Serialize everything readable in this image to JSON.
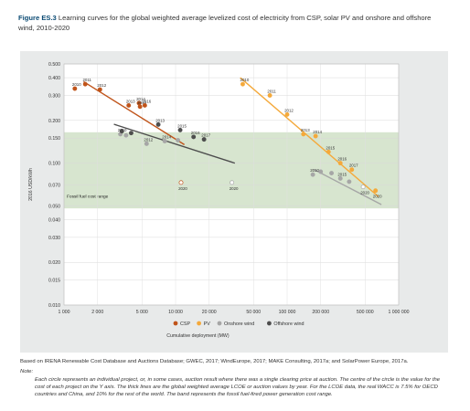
{
  "caption": {
    "figure_label": "Figure ES.3",
    "title": "Learning curves for the global weighted average levelized cost of electricity from CSP, solar PV and onshore and offshore wind, 2010-2020"
  },
  "notes": {
    "source": "Based on IRENA Renewable Cost Database and Auctions Database; GWEC, 2017; WindEurope, 2017; MAKE Consulting, 2017a; and SolarPower Europe, 2017a.",
    "note_label": "Note:",
    "note_text": "Each circle represents an individual project, or, in some cases, auction result where there was a single clearing price at auction. The centre of the circle is the value for the cost of each project on the Y axis. The thick lines are the global weighted average LCOE or auction values by year. For the LCOE data, the real WACC is 7.5% for OECD countries and China, and 10% for the rest of the world. The band represents the fossil fuel-fired power generation cost range."
  },
  "chart_data": {
    "type": "scatter",
    "x_scale": "log",
    "y_scale": "log",
    "xlabel": "Cumulative deployment (MW)",
    "ylabel": "2016 USD/kWh",
    "xlim": [
      1000,
      1000000
    ],
    "ylim": [
      0.01,
      0.5
    ],
    "x_ticks": [
      1000,
      2000,
      5000,
      10000,
      20000,
      50000,
      100000,
      200000,
      500000,
      1000000
    ],
    "x_tick_labels": [
      "1 000",
      "2 000",
      "5 000",
      "10 000",
      "20 000",
      "50 000",
      "100 000",
      "200 000",
      "500 000",
      "1 000 000"
    ],
    "y_ticks": [
      0.01,
      0.015,
      0.02,
      0.03,
      0.04,
      0.05,
      0.07,
      0.1,
      0.15,
      0.2,
      0.3,
      0.4,
      0.5
    ],
    "y_tick_labels": [
      "0.010",
      "0.015",
      "0.020",
      "0.030",
      "0.040",
      "0.050",
      "0.070",
      "0.100",
      "0.150",
      "0.200",
      "0.300",
      "0.400",
      "0.500"
    ],
    "fossil_band": {
      "label": "Fossil fuel cost range",
      "y_range": [
        0.048,
        0.165
      ]
    },
    "series": [
      {
        "name": "CSP",
        "color": "#c0541a",
        "marker": "filled",
        "points": [
          {
            "x": 1250,
            "y": 0.335,
            "label": "2010"
          },
          {
            "x": 1550,
            "y": 0.36,
            "label": "2011"
          },
          {
            "x": 2100,
            "y": 0.33,
            "label": "2012"
          },
          {
            "x": 3800,
            "y": 0.255,
            "label": "2013"
          },
          {
            "x": 4700,
            "y": 0.265,
            "label": "2014"
          },
          {
            "x": 4800,
            "y": 0.25,
            "label": "2015"
          },
          {
            "x": 5300,
            "y": 0.255,
            "label": "2016"
          },
          {
            "x": 11200,
            "y": 0.073,
            "label": "2020"
          }
        ],
        "trend": [
          {
            "x": 1500,
            "y": 0.375
          },
          {
            "x": 12000,
            "y": 0.135
          }
        ]
      },
      {
        "name": "PV",
        "color": "#f4a93b",
        "marker": "filled",
        "points": [
          {
            "x": 40000,
            "y": 0.36,
            "label": "2010"
          },
          {
            "x": 70000,
            "y": 0.3,
            "label": "2011"
          },
          {
            "x": 100000,
            "y": 0.22,
            "label": "2012"
          },
          {
            "x": 140000,
            "y": 0.16,
            "label": "2013"
          },
          {
            "x": 180000,
            "y": 0.155,
            "label": "2014"
          },
          {
            "x": 235000,
            "y": 0.12,
            "label": "2015"
          },
          {
            "x": 300000,
            "y": 0.1,
            "label": "2016"
          },
          {
            "x": 380000,
            "y": 0.09,
            "label": "2017"
          },
          {
            "x": 620000,
            "y": 0.064,
            "label": "2020"
          }
        ],
        "trend": [
          {
            "x": 38000,
            "y": 0.4
          },
          {
            "x": 660000,
            "y": 0.058
          }
        ]
      },
      {
        "name": "Onshore wind",
        "color": "#a6a6a6",
        "marker": "filled",
        "points": [
          {
            "x": 3200,
            "y": 0.16,
            "label": "2010"
          },
          {
            "x": 3600,
            "y": 0.157,
            "label": ""
          },
          {
            "x": 5500,
            "y": 0.137,
            "label": "2012"
          },
          {
            "x": 8000,
            "y": 0.143,
            "label": "2014"
          },
          {
            "x": 10500,
            "y": 0.145,
            "label": ""
          },
          {
            "x": 32000,
            "y": 0.073,
            "label": "2020"
          },
          {
            "x": 170000,
            "y": 0.083,
            "label": "2010"
          },
          {
            "x": 200000,
            "y": 0.087,
            "label": ""
          },
          {
            "x": 250000,
            "y": 0.085,
            "label": ""
          },
          {
            "x": 300000,
            "y": 0.078,
            "label": "2015"
          },
          {
            "x": 360000,
            "y": 0.074,
            "label": ""
          },
          {
            "x": 480000,
            "y": 0.068,
            "label": "2020"
          }
        ],
        "trend": [
          {
            "x": 175000,
            "y": 0.09
          },
          {
            "x": 700000,
            "y": 0.051
          }
        ]
      },
      {
        "name": "Offshore wind",
        "color": "#4d4d4d",
        "marker": "filled",
        "points": [
          {
            "x": 3300,
            "y": 0.168,
            "label": ""
          },
          {
            "x": 4000,
            "y": 0.163,
            "label": ""
          },
          {
            "x": 7000,
            "y": 0.187,
            "label": "2013"
          },
          {
            "x": 11000,
            "y": 0.171,
            "label": "2015"
          },
          {
            "x": 14500,
            "y": 0.153,
            "label": "2016"
          },
          {
            "x": 18000,
            "y": 0.147,
            "label": "2017"
          }
        ],
        "trend": [
          {
            "x": 2800,
            "y": 0.188
          },
          {
            "x": 34000,
            "y": 0.1
          }
        ]
      }
    ],
    "legend": [
      "CSP",
      "PV",
      "Onshore wind",
      "Offshore wind"
    ]
  }
}
